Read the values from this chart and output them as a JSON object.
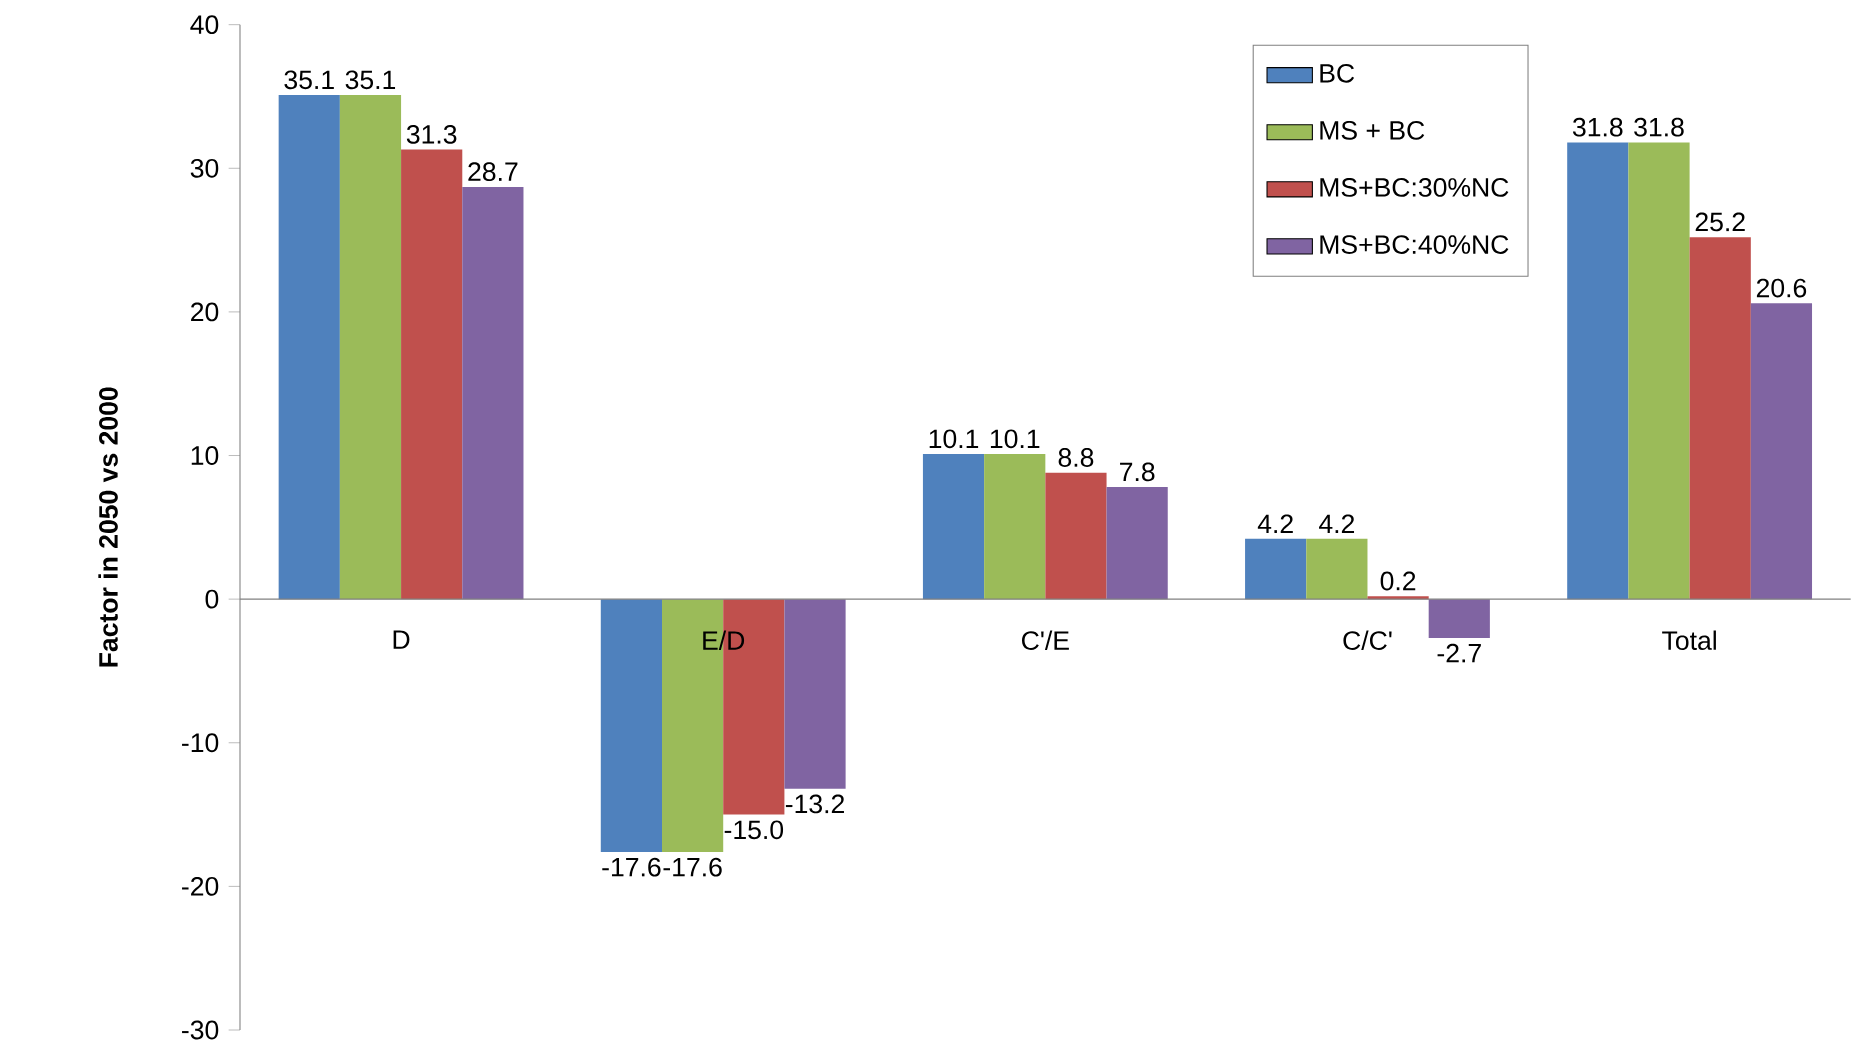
{
  "chart_data": {
    "type": "bar",
    "ylabel": "Factor in 2050 vs 2000",
    "categories": [
      "D",
      "E/D",
      "C'/E",
      "C/C'",
      "Total"
    ],
    "series": [
      {
        "name": "BC",
        "color": "#4f81bd",
        "values": [
          35.1,
          -17.6,
          10.1,
          4.2,
          31.8
        ],
        "value_labels": [
          "35.1",
          "-17.6",
          "10.1",
          "4.2",
          "31.8"
        ]
      },
      {
        "name": "MS + BC",
        "color": "#9bbb59",
        "values": [
          35.1,
          -17.6,
          10.1,
          4.2,
          31.8
        ],
        "value_labels": [
          "35.1",
          "-17.6",
          "10.1",
          "4.2",
          "31.8"
        ]
      },
      {
        "name": "MS+BC:30%NC",
        "color": "#c0504d",
        "values": [
          31.3,
          -15.0,
          8.8,
          0.2,
          25.2
        ],
        "value_labels": [
          "31.3",
          "-15.0",
          "8.8",
          "0.2",
          "25.2"
        ]
      },
      {
        "name": "MS+BC:40%NC",
        "color": "#8064a2",
        "values": [
          28.7,
          -13.2,
          7.8,
          -2.7,
          20.6
        ],
        "value_labels": [
          "28.7",
          "-13.2",
          "7.8",
          "-2.7",
          "20.6"
        ]
      }
    ],
    "ylim": [
      -30,
      40
    ],
    "yticks": [
      -30,
      -20,
      -10,
      0,
      10,
      20,
      30,
      40
    ],
    "legend": "top right",
    "grid": false
  }
}
